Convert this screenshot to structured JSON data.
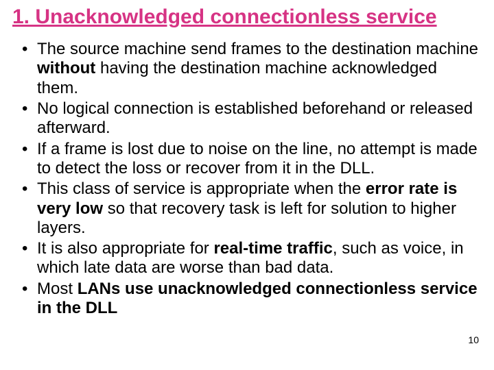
{
  "title": {
    "text": "1. Unacknowledged connectionless service",
    "color": "#d63384",
    "fontsize": 30
  },
  "bullets": {
    "color": "#000000",
    "fontsize": 24,
    "line_height": 1.18,
    "items": [
      {
        "spans": [
          {
            "t": "The source machine send frames to the destination machine ",
            "b": false
          },
          {
            "t": "without",
            "b": true
          },
          {
            "t": " having the destination machine acknowledged them.",
            "b": false
          }
        ]
      },
      {
        "spans": [
          {
            "t": "No logical connection is established beforehand or released afterward.",
            "b": false
          }
        ]
      },
      {
        "spans": [
          {
            "t": "If a frame is lost due to noise on the line, no attempt is made to detect the loss or recover from it in the DLL.",
            "b": false
          }
        ]
      },
      {
        "spans": [
          {
            "t": "This class of service is appropriate when the ",
            "b": false
          },
          {
            "t": "error rate is very low",
            "b": true
          },
          {
            "t": " so that recovery task is left for solution to higher layers.",
            "b": false
          }
        ]
      },
      {
        "spans": [
          {
            "t": "It is also appropriate for ",
            "b": false
          },
          {
            "t": "real-time traffic",
            "b": true
          },
          {
            "t": ", such as voice, in which late data are worse than bad data.",
            "b": false
          }
        ]
      },
      {
        "spans": [
          {
            "t": "Most ",
            "b": false
          },
          {
            "t": "LANs use unacknowledged connectionless service in the DLL",
            "b": true
          }
        ]
      }
    ]
  },
  "page_number": {
    "text": "10",
    "color": "#000000",
    "fontsize": 14
  }
}
